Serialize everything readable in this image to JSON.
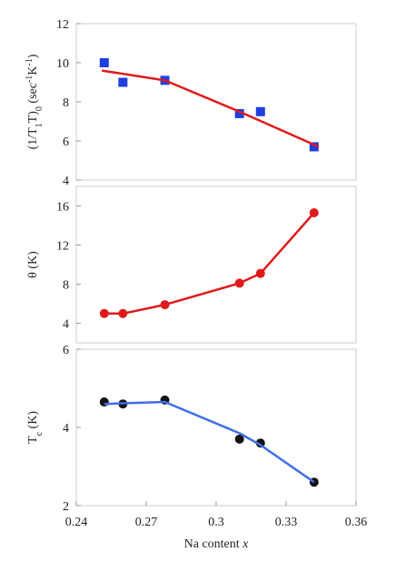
{
  "chart_data": [
    {
      "type": "scatter",
      "panel": "top",
      "ylabel_parts": {
        "open": "(1/T",
        "sub1": "1",
        "mid": "T)",
        "sub2": "0",
        "unit_open": " (sec",
        "sup1": "-1",
        "unit_mid": "K",
        "sup2": "-1",
        "unit_close": ")"
      },
      "xlim": [
        0.24,
        0.36
      ],
      "ylim": [
        4,
        12
      ],
      "yticks": [
        4,
        6,
        8,
        10,
        12
      ],
      "ytick_labels": [
        "4",
        "6",
        "8",
        "10",
        "12"
      ],
      "grid": false,
      "series": [
        {
          "marker": "square",
          "color": "#1f3fe0",
          "points": [
            [
              0.252,
              10.0
            ],
            [
              0.26,
              9.0
            ],
            [
              0.278,
              9.1
            ],
            [
              0.31,
              7.4
            ],
            [
              0.319,
              7.5
            ],
            [
              0.342,
              5.7
            ]
          ]
        },
        {
          "line": true,
          "color": "#e01a1a",
          "points": [
            [
              0.251,
              9.6
            ],
            [
              0.278,
              9.1
            ],
            [
              0.31,
              7.5
            ],
            [
              0.344,
              5.7
            ]
          ]
        }
      ]
    },
    {
      "type": "scatter",
      "panel": "middle",
      "ylabel": "θ (K)",
      "xlim": [
        0.24,
        0.36
      ],
      "ylim": [
        2,
        18
      ],
      "yticks": [
        4,
        8,
        12,
        16
      ],
      "ytick_labels": [
        "4",
        "8",
        "12",
        "16"
      ],
      "grid": false,
      "series": [
        {
          "marker": "circle",
          "color": "#e01a1a",
          "line": true,
          "points": [
            [
              0.252,
              5.0
            ],
            [
              0.26,
              5.0
            ],
            [
              0.278,
              5.9
            ],
            [
              0.31,
              8.1
            ],
            [
              0.319,
              9.1
            ],
            [
              0.342,
              15.3
            ]
          ]
        }
      ]
    },
    {
      "type": "scatter",
      "panel": "bottom",
      "ylabel_parts": {
        "main": "T",
        "sub": "c",
        "unit": " (K)"
      },
      "xlabel_parts": {
        "main": "Na content ",
        "var": "x"
      },
      "xlim": [
        0.24,
        0.36
      ],
      "ylim": [
        2,
        6
      ],
      "xticks": [
        0.24,
        0.27,
        0.3,
        0.33,
        0.36
      ],
      "xtick_labels": [
        "0.24",
        "0.27",
        "0.3",
        "0.33",
        "0.36"
      ],
      "yticks": [
        2,
        4,
        6
      ],
      "ytick_labels": [
        "2",
        "4",
        "6"
      ],
      "grid": false,
      "series": [
        {
          "marker": "circle",
          "color": "#111111",
          "points": [
            [
              0.252,
              4.65
            ],
            [
              0.26,
              4.6
            ],
            [
              0.278,
              4.7
            ],
            [
              0.31,
              3.7
            ],
            [
              0.319,
              3.6
            ],
            [
              0.342,
              2.6
            ]
          ]
        },
        {
          "line": true,
          "color": "#3f6ee8",
          "points": [
            [
              0.252,
              4.6
            ],
            [
              0.278,
              4.65
            ],
            [
              0.31,
              3.85
            ],
            [
              0.319,
              3.55
            ],
            [
              0.342,
              2.6
            ]
          ]
        }
      ]
    }
  ]
}
